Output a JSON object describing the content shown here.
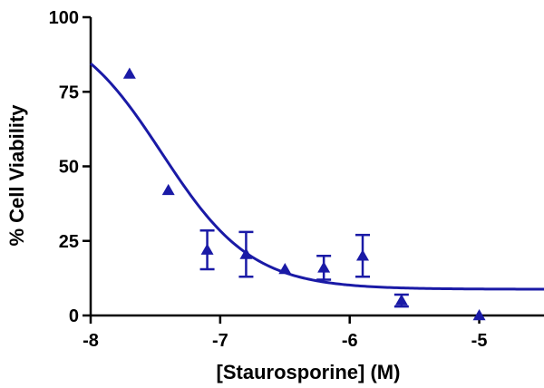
{
  "chart_data": {
    "type": "scatter",
    "title": "",
    "xlabel": "[Staurosporine] (M)",
    "ylabel": "% Cell Viability",
    "xlim": [
      -8,
      -4.5
    ],
    "ylim": [
      0,
      100
    ],
    "x_ticks": [
      -8,
      -7,
      -6,
      -5
    ],
    "y_ticks": [
      0,
      25,
      50,
      75,
      100
    ],
    "x_tick_labels": [
      "-8",
      "-7",
      "-6",
      "-5"
    ],
    "y_tick_labels": [
      "0",
      "25",
      "50",
      "75",
      "100"
    ],
    "grid": false,
    "legend": "none",
    "marker": "triangle",
    "color": "#1a1aa6",
    "series": [
      {
        "points": [
          {
            "x": -7.7,
            "y": 81,
            "err": 0
          },
          {
            "x": -7.4,
            "y": 42,
            "err": 0
          },
          {
            "x": -7.1,
            "y": 22,
            "err": 6.5
          },
          {
            "x": -6.8,
            "y": 20.5,
            "err": 7.5
          },
          {
            "x": -6.5,
            "y": 15.5,
            "err": 0
          },
          {
            "x": -6.2,
            "y": 16,
            "err": 4
          },
          {
            "x": -5.9,
            "y": 20,
            "err": 7
          },
          {
            "x": -5.6,
            "y": 5,
            "err": 2
          },
          {
            "x": -5.0,
            "y": 0,
            "err": 0
          }
        ]
      }
    ],
    "fit": {
      "model": "sigmoidal dose-response",
      "top": 100,
      "bottom": 8.8,
      "logEC50": -7.45,
      "hill_slope": -1.25,
      "x_range": [
        -8,
        -4.5
      ]
    }
  }
}
